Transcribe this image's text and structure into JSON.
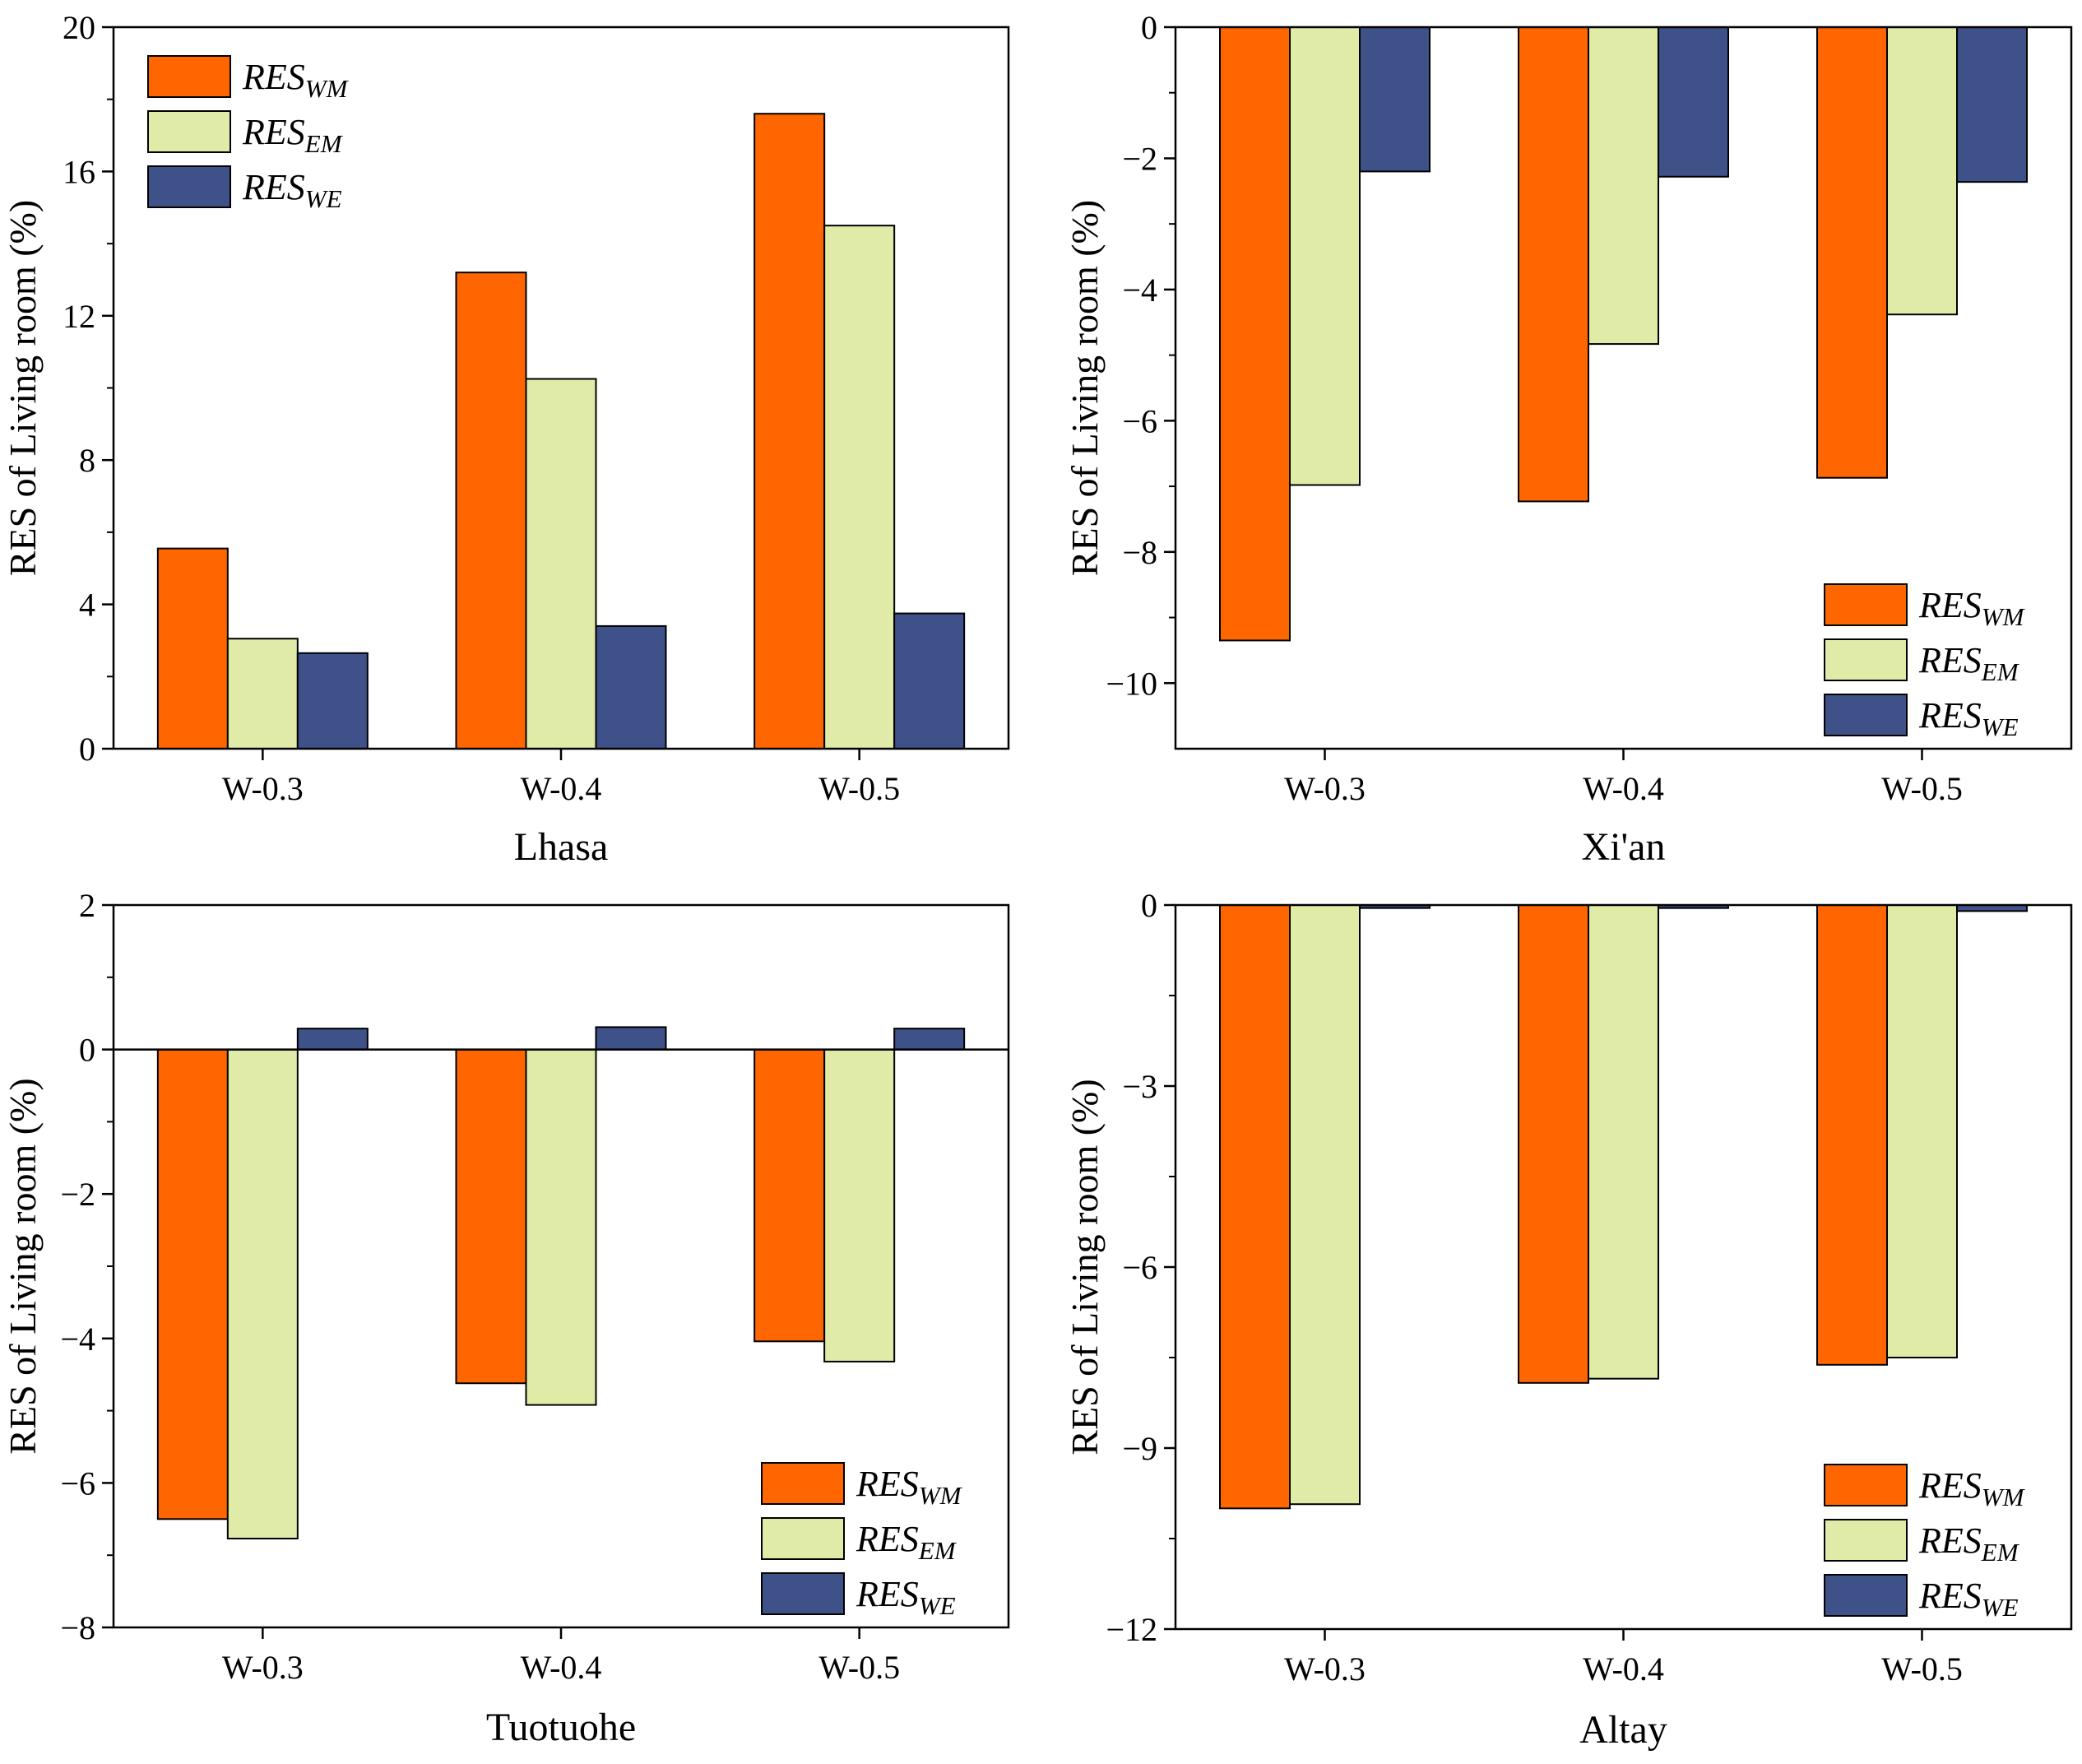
{
  "figure_caption_labels": [
    "Lhasa",
    "Xi'an",
    "Tuotuohe",
    "Altay"
  ],
  "colors": {
    "RES_WM": "#ff6600",
    "RES_EM": "#e1eba8",
    "RES_WE": "#3f5189"
  },
  "chart_data": [
    {
      "type": "bar",
      "title": "Lhasa",
      "categories": [
        "W-0.3",
        "W-0.4",
        "W-0.5"
      ],
      "ylabel": "RES of Living room (%)",
      "ylim": [
        0,
        20
      ],
      "yticks": [
        "0",
        "4",
        "8",
        "12",
        "16",
        "20"
      ],
      "legend_position": "top-left",
      "series": [
        {
          "name": "RES",
          "sub": "WM",
          "values": [
            5.55,
            13.2,
            17.6
          ]
        },
        {
          "name": "RES",
          "sub": "EM",
          "values": [
            3.05,
            10.25,
            14.5
          ]
        },
        {
          "name": "RES",
          "sub": "WE",
          "values": [
            2.65,
            3.4,
            3.75
          ]
        }
      ]
    },
    {
      "type": "bar",
      "title": "Xi'an",
      "categories": [
        "W-0.3",
        "W-0.4",
        "W-0.5"
      ],
      "ylabel": "RES of Living room (%)",
      "ylim": [
        -11,
        0
      ],
      "yticks": [
        "0",
        "−2",
        "−4",
        "−6",
        "−8",
        "−10"
      ],
      "legend_position": "bottom-right",
      "series": [
        {
          "name": "RES",
          "sub": "WM",
          "values": [
            -9.35,
            -7.23,
            -6.87
          ]
        },
        {
          "name": "RES",
          "sub": "EM",
          "values": [
            -6.98,
            -4.83,
            -4.38
          ]
        },
        {
          "name": "RES",
          "sub": "WE",
          "values": [
            -2.2,
            -2.28,
            -2.36
          ]
        }
      ]
    },
    {
      "type": "bar",
      "title": "Tuotuohe",
      "categories": [
        "W-0.3",
        "W-0.4",
        "W-0.5"
      ],
      "ylabel": "RES of Living room (%)",
      "ylim": [
        -8,
        2
      ],
      "yticks": [
        "2",
        "0",
        "−2",
        "−4",
        "−6",
        "−8"
      ],
      "legend_position": "bottom-right",
      "series": [
        {
          "name": "RES",
          "sub": "WM",
          "values": [
            -6.5,
            -4.62,
            -4.04
          ]
        },
        {
          "name": "RES",
          "sub": "EM",
          "values": [
            -6.77,
            -4.92,
            -4.32
          ]
        },
        {
          "name": "RES",
          "sub": "WE",
          "values": [
            0.29,
            0.31,
            0.29
          ]
        }
      ]
    },
    {
      "type": "bar",
      "title": "Altay",
      "categories": [
        "W-0.3",
        "W-0.4",
        "W-0.5"
      ],
      "ylabel": "RES of Living room (%)",
      "ylim": [
        -12,
        0
      ],
      "yticks": [
        "0",
        "−3",
        "−6",
        "−9",
        "−12"
      ],
      "legend_position": "bottom-right",
      "series": [
        {
          "name": "RES",
          "sub": "WM",
          "values": [
            -10.0,
            -7.92,
            -7.62
          ]
        },
        {
          "name": "RES",
          "sub": "EM",
          "values": [
            -9.93,
            -7.85,
            -7.5
          ]
        },
        {
          "name": "RES",
          "sub": "WE",
          "values": [
            -0.05,
            -0.05,
            -0.1
          ]
        }
      ]
    }
  ]
}
